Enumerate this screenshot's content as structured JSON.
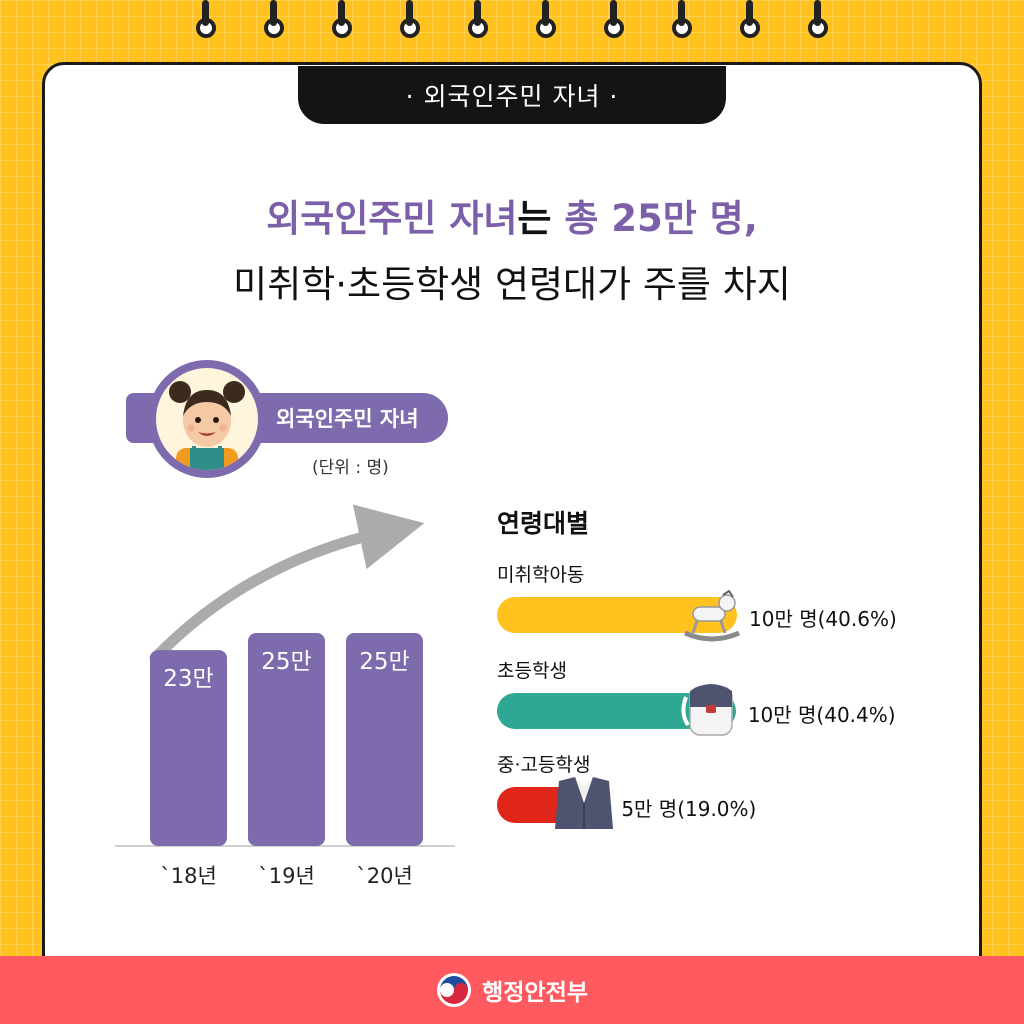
{
  "tab_title": "· 외국인주민 자녀 ·",
  "headline": {
    "line1_accent_a": "외국인주민 자녀",
    "line1_plain": "는 ",
    "line1_accent_b": "총 25만 명,",
    "line2": "미취학·초등학생 연령대가 주를 차지"
  },
  "profile": {
    "label": "외국인주민 자녀",
    "unit": "(단위 : 명)"
  },
  "chart_data": [
    {
      "type": "bar",
      "categories": [
        "`18년",
        "`19년",
        "`20년"
      ],
      "values": [
        23,
        25,
        25
      ],
      "value_labels": [
        "23만",
        "25만",
        "25만"
      ],
      "unit": "만 명",
      "color": "#7E6BAD",
      "ylim": [
        0,
        27
      ]
    },
    {
      "type": "bar",
      "orientation": "horizontal",
      "title": "연령대별",
      "categories": [
        "미취학아동",
        "초등학생",
        "중·고등학생"
      ],
      "values": [
        40.6,
        40.4,
        19.0
      ],
      "value_labels": [
        "10만 명(40.6%)",
        "10만 명(40.4%)",
        "5만 명(19.0%)"
      ],
      "colors": [
        "#FFC21F",
        "#2FA893",
        "#E0251B"
      ],
      "icons": [
        "rocking-horse-icon",
        "backpack-icon",
        "school-uniform-icon"
      ]
    }
  ],
  "footer": {
    "org": "행정안전부"
  }
}
